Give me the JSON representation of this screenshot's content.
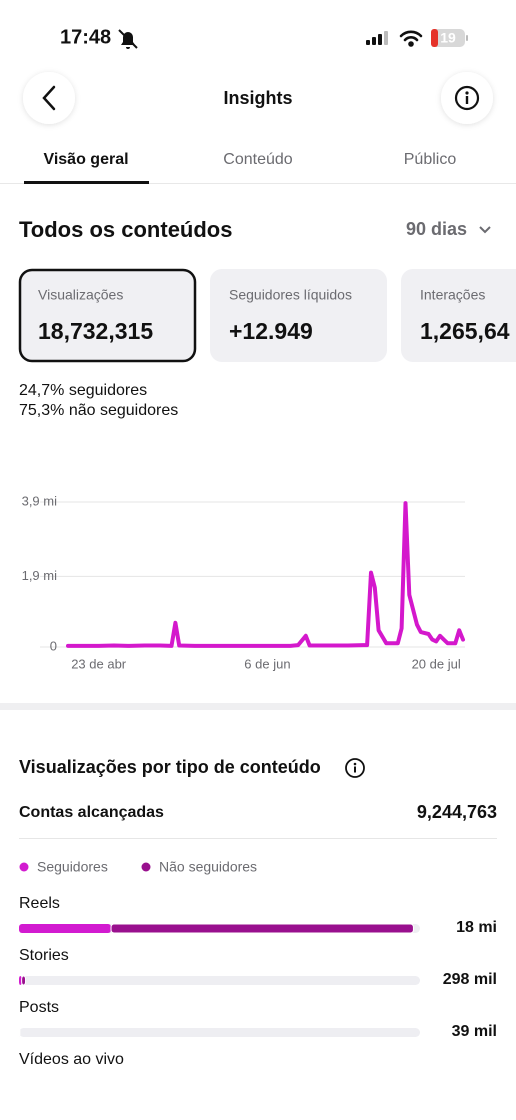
{
  "status_bar": {
    "time": "17:48",
    "battery": "19"
  },
  "header": {
    "title": "Insights"
  },
  "tabs": [
    "Visão geral",
    "Conteúdo",
    "Público"
  ],
  "section": {
    "title": "Todos os conteúdos",
    "period": "90 dias"
  },
  "cards": [
    {
      "label": "Visualizações",
      "value": "18,732,315"
    },
    {
      "label": "Seguidores líquidos",
      "value": "+12.949"
    },
    {
      "label": "Interações",
      "value": "1,265,64"
    }
  ],
  "audience": [
    {
      "value": "24,7%",
      "label": "seguidores"
    },
    {
      "value": "75,3%",
      "label": "não seguidores"
    }
  ],
  "reach": {
    "label": "Contas alcançadas",
    "value": "9,244,763"
  },
  "chart_data": [
    {
      "type": "line",
      "color": "#d418cc",
      "x": [
        -8,
        -4,
        0,
        4,
        8,
        12,
        16,
        19,
        20,
        21,
        25,
        30,
        35,
        40,
        45,
        50,
        52,
        54,
        55,
        60,
        65,
        69,
        70,
        71,
        72,
        73,
        75,
        78,
        79,
        80,
        81,
        83,
        84,
        86,
        87,
        88,
        89,
        90,
        91,
        93,
        94,
        95
      ],
      "values": [
        0.03,
        0.03,
        0.03,
        0.04,
        0.03,
        0.04,
        0.04,
        0.03,
        0.65,
        0.04,
        0.03,
        0.03,
        0.03,
        0.03,
        0.03,
        0.03,
        0.05,
        0.3,
        0.04,
        0.04,
        0.04,
        0.05,
        0.05,
        2.0,
        1.6,
        0.45,
        0.1,
        0.1,
        0.5,
        3.87,
        1.4,
        0.6,
        0.4,
        0.35,
        0.2,
        0.15,
        0.3,
        0.2,
        0.1,
        0.1,
        0.45,
        0.2
      ],
      "xlim": [
        -8,
        95
      ],
      "xticks": [
        {
          "value": 0,
          "label": "23 de abr"
        },
        {
          "value": 44,
          "label": "6 de jun"
        },
        {
          "value": 88,
          "label": "20 de jul"
        }
      ],
      "ylim": [
        0,
        3.9
      ],
      "yticks": [
        0,
        {
          "value": 1.9,
          "label": "1,9 mi"
        },
        {
          "value": 3.9,
          "label": "3,9 mi"
        }
      ],
      "grid": true
    },
    {
      "type": "stacked-hbar",
      "title": "Visualizações por tipo de conteúdo",
      "categories": [
        "Reels",
        "Stories",
        "Posts",
        "Vídeos ao vivo"
      ],
      "values": [
        18,
        0.298,
        0.039,
        null
      ],
      "value_labels": [
        "18 mi",
        "298 mil",
        "39 mil",
        null
      ],
      "series": [
        {
          "name": "Seguidores",
          "color": "#d21bd0",
          "values": [
            4.2,
            0.12,
            0.015,
            null
          ]
        },
        {
          "name": "Não seguidores",
          "color": "#99108e",
          "values": [
            13.8,
            0.178,
            0.024,
            null
          ]
        }
      ],
      "xlim": [
        0,
        18.3
      ]
    }
  ]
}
